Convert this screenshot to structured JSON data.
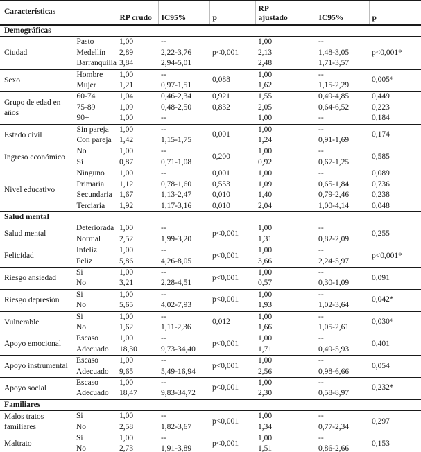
{
  "header": {
    "caracteristicas": "Características",
    "rp_crudo": "RP crudo",
    "ic95_crudo": "IC95%",
    "p_crudo": "p",
    "rp_ajustado": "RP ajustado",
    "ic95_ajustado": "IC95%",
    "p_ajustado": "p"
  },
  "colors": {
    "text": "#1a1a1a",
    "border_strong": "#1a1a1a",
    "border_faint": "#bdbdbd",
    "background": "#ffffff"
  },
  "sections": [
    {
      "label": "Demográficas",
      "groups": [
        {
          "name": "Ciudad",
          "p_crudo": "p<0,001",
          "p_ajustado": "p<0,001*",
          "rows": [
            {
              "cat": "Pasto",
              "rp": "1,00",
              "ic": "--",
              "aj": "1,00",
              "ica": "--"
            },
            {
              "cat": "Medellín",
              "rp": "2,89",
              "ic": "2,22-3,76",
              "aj": "2,13",
              "ica": "1,48-3,05"
            },
            {
              "cat": "Barranquilla",
              "rp": "3,84",
              "ic": "2,94-5,01",
              "aj": "2,48",
              "ica": "1,71-3,57"
            }
          ]
        },
        {
          "name": "Sexo",
          "p_crudo": "0,088",
          "p_ajustado": "0,005*",
          "rows": [
            {
              "cat": "Hombre",
              "rp": "1,00",
              "ic": "--",
              "aj": "1,00",
              "ica": "--"
            },
            {
              "cat": "Mujer",
              "rp": "1,21",
              "ic": "0,97-1,51",
              "aj": "1,62",
              "ica": "1,15-2,29"
            }
          ]
        },
        {
          "name": "Grupo de edad en años",
          "p_crudo": null,
          "p_ajustado": null,
          "rows": [
            {
              "cat": "60-74",
              "rp": "1,04",
              "ic": "0,46-2,34",
              "p": "0,921",
              "aj": "1,55",
              "ica": "0,49-4,85",
              "pa": "0,449"
            },
            {
              "cat": "75-89",
              "rp": "1,09",
              "ic": "0,48-2,50",
              "p": "0,832",
              "aj": "2,05",
              "ica": "0,64-6,52",
              "pa": "0,223"
            },
            {
              "cat": "90+",
              "rp": "1,00",
              "ic": "--",
              "p": "",
              "aj": "1,00",
              "ica": "--",
              "pa": "0,184"
            }
          ]
        },
        {
          "name": "Estado civil",
          "p_crudo": "0,001",
          "p_ajustado": "0,174",
          "rows": [
            {
              "cat": "Sin pareja",
              "rp": "1,00",
              "ic": "--",
              "aj": "1,00",
              "ica": "--"
            },
            {
              "cat": "Con pareja",
              "rp": "1,42",
              "ic": "1,15-1,75",
              "aj": "1,24",
              "ica": "0,91-1,69"
            }
          ]
        },
        {
          "name": "Ingreso económico",
          "p_crudo": "0,200",
          "p_ajustado": "0,585",
          "rows": [
            {
              "cat": "No",
              "rp": "1,00",
              "ic": "--",
              "aj": "1,00",
              "ica": "--"
            },
            {
              "cat": "Si",
              "rp": "0,87",
              "ic": "0,71-1,08",
              "aj": "0,92",
              "ica": "0,67-1,25"
            }
          ]
        },
        {
          "name": "Nivel educativo",
          "p_crudo": null,
          "p_ajustado": null,
          "rows": [
            {
              "cat": "Ninguno",
              "rp": "1,00",
              "ic": "--",
              "p": "0,001",
              "aj": "1,00",
              "ica": "--",
              "pa": "0,089"
            },
            {
              "cat": "Primaria",
              "rp": "1,12",
              "ic": "0,78-1,60",
              "p": "0,553",
              "aj": "1,09",
              "ica": "0,65-1,84",
              "pa": "0,736"
            },
            {
              "cat": "Secundaria",
              "rp": "1,67",
              "ic": "1,13-2,47",
              "p": "0,010",
              "aj": "1,40",
              "ica": "0,79-2,46",
              "pa": "0,238"
            },
            {
              "cat": "Terciaria",
              "rp": "1,92",
              "ic": "1,17-3,16",
              "p": "0,010",
              "aj": "2,04",
              "ica": "1,00-4,14",
              "pa": "0,048"
            }
          ]
        }
      ]
    },
    {
      "label": "Salud mental",
      "groups": [
        {
          "name": "Salud mental",
          "p_crudo": "p<0,001",
          "p_ajustado": "0,255",
          "rows": [
            {
              "cat": "Deteriorada",
              "rp": "1,00",
              "ic": "--",
              "aj": "1,00",
              "ica": "--"
            },
            {
              "cat": "Normal",
              "rp": "2,52",
              "ic": "1,99-3,20",
              "aj": "1,31",
              "ica": "0,82-2,09"
            }
          ]
        },
        {
          "name": "Felicidad",
          "p_crudo": "p<0,001",
          "p_ajustado": "p<0,001*",
          "rows": [
            {
              "cat": "Infeliz",
              "rp": "1,00",
              "ic": "--",
              "aj": "1,00",
              "ica": "--"
            },
            {
              "cat": "Feliz",
              "rp": "5,86",
              "ic": "4,26-8,05",
              "aj": "3,66",
              "ica": "2,24-5,97"
            }
          ]
        },
        {
          "name": "Riesgo ansiedad",
          "p_crudo": "p<0,001",
          "p_ajustado": "0,091",
          "rows": [
            {
              "cat": "Si",
              "rp": "1,00",
              "ic": "--",
              "aj": "1,00",
              "ica": "--"
            },
            {
              "cat": "No",
              "rp": "3,21",
              "ic": "2,28-4,51",
              "aj": "0,57",
              "ica": "0,30-1,09"
            }
          ]
        },
        {
          "name": "Riesgo depresión",
          "p_crudo": "p<0,001",
          "p_ajustado": "0,042*",
          "rows": [
            {
              "cat": "Si",
              "rp": "1,00",
              "ic": "--",
              "aj": "1,00",
              "ica": "--"
            },
            {
              "cat": "No",
              "rp": "5,65",
              "ic": "4,02-7,93",
              "aj": "1,93",
              "ica": "1,02-3,64"
            }
          ]
        },
        {
          "name": "Vulnerable",
          "p_crudo": "0,012",
          "p_ajustado": "0,030*",
          "rows": [
            {
              "cat": "Si",
              "rp": "1,00",
              "ic": "--",
              "aj": "1,00",
              "ica": "--"
            },
            {
              "cat": "No",
              "rp": "1,62",
              "ic": "1,11-2,36",
              "aj": "1,66",
              "ica": "1,05-2,61"
            }
          ]
        },
        {
          "name": "Apoyo emocional",
          "p_crudo": "p<0,001",
          "p_ajustado": "0,401",
          "rows": [
            {
              "cat": "Escaso",
              "rp": "1,00",
              "ic": "--",
              "aj": "1,00",
              "ica": "--"
            },
            {
              "cat": "Adecuado",
              "rp": "18,30",
              "ic": "9,73-34,40",
              "aj": "1,71",
              "ica": "0,49-5,93"
            }
          ]
        },
        {
          "name": "Apoyo instrumental",
          "p_crudo": "p<0,001",
          "p_ajustado": "0,054",
          "rows": [
            {
              "cat": "Escaso",
              "rp": "1,00",
              "ic": "--",
              "aj": "1,00",
              "ica": "--"
            },
            {
              "cat": "Adecuado",
              "rp": "9,65",
              "ic": "5,49-16,94",
              "aj": "2,56",
              "ica": "0,98-6,66"
            }
          ]
        },
        {
          "name": "Apoyo social",
          "p_crudo": "p<0,001",
          "p_ajustado": "0,232*",
          "p_underline": true,
          "rows": [
            {
              "cat": "Escaso",
              "rp": "1,00",
              "ic": "--",
              "aj": "1,00",
              "ica": "--"
            },
            {
              "cat": "Adecuado",
              "rp": "18,47",
              "ic": "9,83-34,72",
              "aj": "2,30",
              "ica": "0,58-8,97"
            }
          ]
        }
      ]
    },
    {
      "label": "Familiares",
      "groups": [
        {
          "name": "Malos tratos familiares",
          "p_crudo": "p<0,001",
          "p_ajustado": "0,297",
          "rows": [
            {
              "cat": "Si",
              "rp": "1,00",
              "ic": "--",
              "aj": "1,00",
              "ica": "--"
            },
            {
              "cat": "No",
              "rp": "2,58",
              "ic": "1,82-3,67",
              "aj": "1,34",
              "ica": "0,77-2,34"
            }
          ]
        },
        {
          "name": "Maltrato",
          "p_crudo": "p<0,001",
          "p_ajustado": "0,153",
          "rows": [
            {
              "cat": "Si",
              "rp": "1,00",
              "ic": "--",
              "aj": "1,00",
              "ica": "--"
            },
            {
              "cat": "No",
              "rp": "2,73",
              "ic": "1,91-3,89",
              "aj": "1,51",
              "ica": "0,86-2,66"
            }
          ]
        }
      ]
    }
  ]
}
